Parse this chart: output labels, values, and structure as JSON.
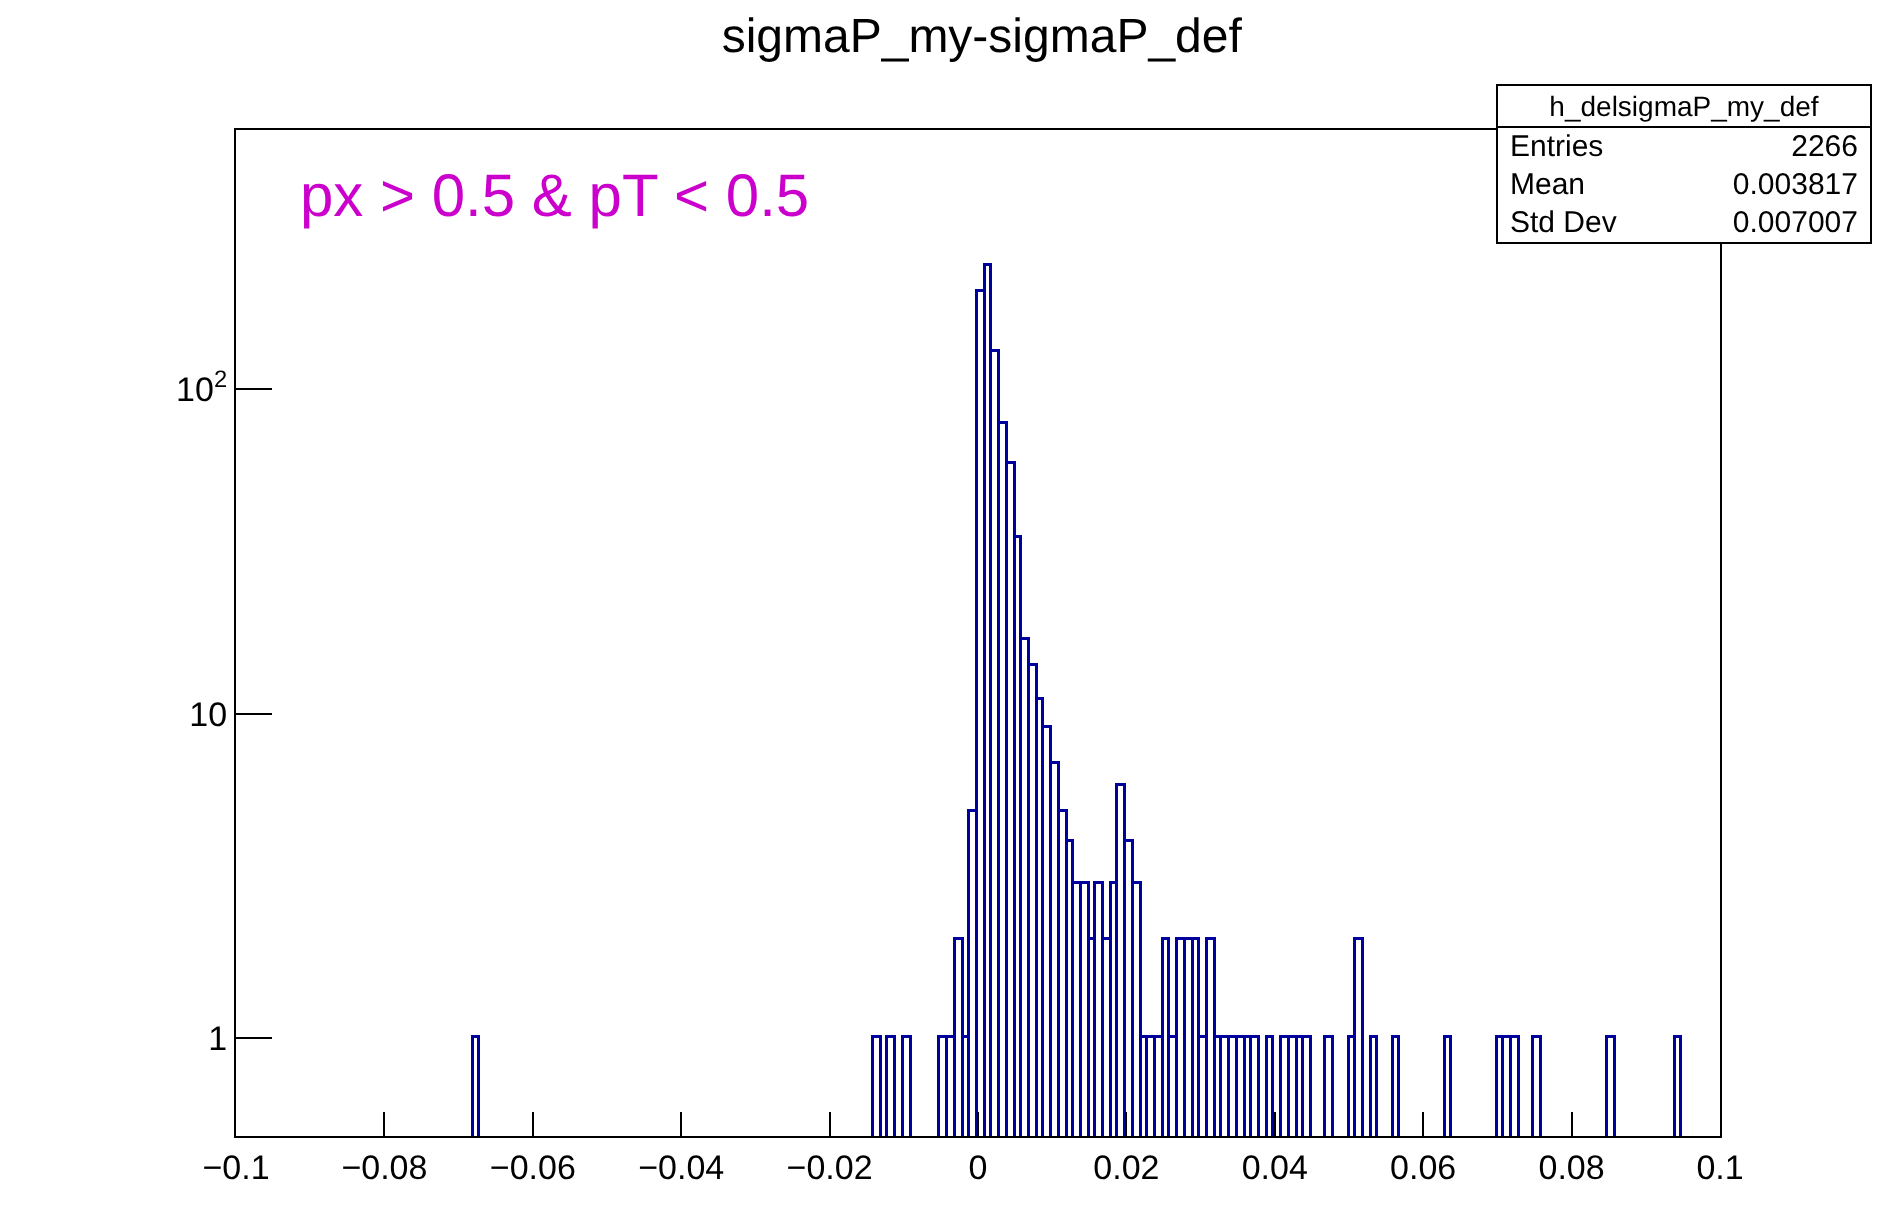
{
  "chart_data": {
    "type": "histogram",
    "title": "sigmaP_my-sigmaP_def",
    "bins": [
      -0.068,
      -0.067,
      -0.014,
      -0.013,
      -0.012,
      -0.011,
      -0.01,
      -0.009,
      -0.005,
      -0.004,
      -0.003,
      -0.002,
      -0.001,
      0,
      0.001,
      0.002,
      0.003,
      0.004,
      0.005,
      0.006,
      0.007,
      0.008,
      0.009,
      0.01,
      0.011,
      0.012,
      0.013,
      0.014,
      0.015,
      0.016,
      0.017,
      0.018,
      0.019,
      0.02,
      0.021,
      0.022,
      0.023,
      0.024,
      0.025,
      0.026,
      0.027,
      0.028,
      0.029,
      0.03,
      0.031,
      0.032,
      0.033,
      0.034,
      0.035,
      0.036,
      0.037,
      0.038,
      0.039,
      0.04,
      0.041,
      0.042,
      0.043,
      0.044,
      0.045,
      0.047,
      0.048,
      0.05,
      0.051,
      0.052,
      0.053,
      0.054,
      0.056,
      0.057,
      0.063,
      0.064,
      0.07,
      0.071,
      0.072,
      0.073,
      0.075,
      0.076,
      0.085,
      0.086,
      0.094,
      0.095
    ],
    "values": [
      1,
      null,
      1,
      null,
      1,
      null,
      1,
      null,
      1,
      1,
      2,
      1,
      5,
      200,
      240,
      130,
      78,
      59,
      35,
      17,
      14,
      11,
      9,
      7,
      5,
      4,
      3,
      3,
      2,
      3,
      2,
      3,
      6,
      4,
      3,
      1,
      1,
      1,
      2,
      1,
      2,
      2,
      2,
      1,
      2,
      1,
      1,
      1,
      1,
      1,
      1,
      null,
      1,
      null,
      1,
      1,
      1,
      1,
      null,
      1,
      null,
      1,
      2,
      null,
      1,
      null,
      1,
      null,
      1,
      null,
      1,
      1,
      1,
      null,
      1,
      null,
      1,
      null,
      1
    ],
    "color": "#00009c",
    "xlim": [
      -0.1,
      0.1
    ],
    "xticks": [
      -0.1,
      -0.08,
      -0.06,
      -0.04,
      -0.02,
      0,
      0.02,
      0.04,
      0.06,
      0.08,
      0.1
    ],
    "ylim": [
      0.5,
      630
    ],
    "yticks": [
      1,
      10,
      {
        "value": 100,
        "label": "10$^{2}$"
      }
    ],
    "log": true,
    "grid": false,
    "annotations": [
      "px > 0.5 & pT < 0.5",
      "h_delsigmaP_my_def",
      "Entries 2266",
      "Mean 0.003817",
      "Std Dev 0.007007"
    ]
  }
}
